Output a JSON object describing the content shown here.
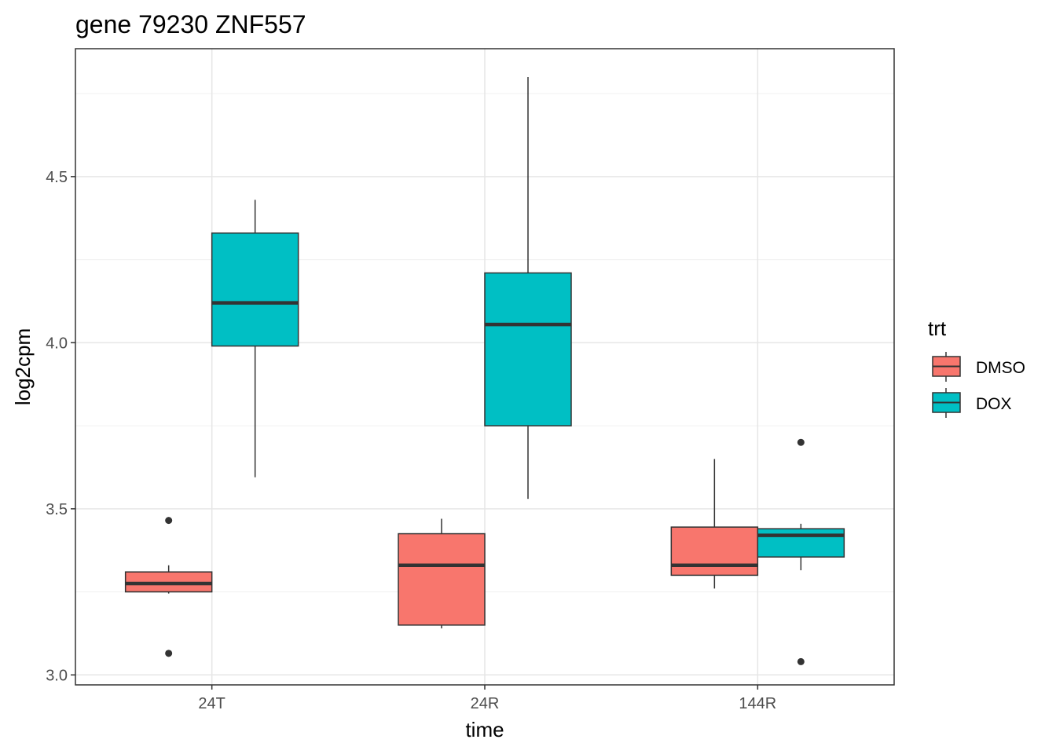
{
  "chart_data": {
    "type": "boxplot",
    "title": "gene 79230 ZNF557",
    "xlabel": "time",
    "ylabel": "log2cpm",
    "categories": [
      "24T",
      "24R",
      "144R"
    ],
    "ylim": [
      2.97,
      4.885
    ],
    "yticks": [
      3.0,
      3.5,
      4.0,
      4.5
    ],
    "ytick_labels": [
      "3.0",
      "3.5",
      "4.0",
      "4.5"
    ],
    "grid": true,
    "legend": {
      "title": "trt",
      "position": "right",
      "entries": [
        {
          "name": "DMSO",
          "color": "#F8766D"
        },
        {
          "name": "DOX",
          "color": "#00BFC4"
        }
      ]
    },
    "series": [
      {
        "name": "DMSO",
        "color": "#F8766D",
        "boxes": [
          {
            "category": "24T",
            "whisker_low": 3.245,
            "q1": 3.25,
            "median": 3.275,
            "q3": 3.31,
            "whisker_high": 3.33,
            "outliers": [
              3.465,
              3.065
            ]
          },
          {
            "category": "24R",
            "whisker_low": 3.14,
            "q1": 3.15,
            "median": 3.33,
            "q3": 3.425,
            "whisker_high": 3.47,
            "outliers": []
          },
          {
            "category": "144R",
            "whisker_low": 3.26,
            "q1": 3.3,
            "median": 3.33,
            "q3": 3.445,
            "whisker_high": 3.65,
            "outliers": []
          }
        ]
      },
      {
        "name": "DOX",
        "color": "#00BFC4",
        "boxes": [
          {
            "category": "24T",
            "whisker_low": 3.595,
            "q1": 3.99,
            "median": 4.12,
            "q3": 4.33,
            "whisker_high": 4.43,
            "outliers": []
          },
          {
            "category": "24R",
            "whisker_low": 3.53,
            "q1": 3.75,
            "median": 4.055,
            "q3": 4.21,
            "whisker_high": 4.8,
            "outliers": []
          },
          {
            "category": "144R",
            "whisker_low": 3.315,
            "q1": 3.355,
            "median": 3.42,
            "q3": 3.44,
            "whisker_high": 3.455,
            "outliers": [
              3.7,
              3.04
            ]
          }
        ]
      }
    ]
  }
}
